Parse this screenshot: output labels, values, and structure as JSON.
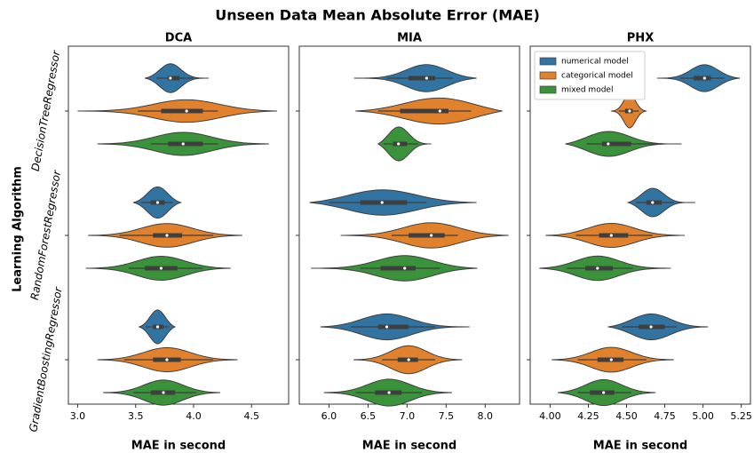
{
  "title": "Unseen Data Mean Absolute Error (MAE)",
  "chart_data": [
    {
      "type": "violin",
      "title": "DCA",
      "xlabel": "MAE in second",
      "ylabel": "Learning Algorithm",
      "categories": [
        "DecisionTreeRegressor",
        "RandomForestRegressor",
        "GradientBoostingRegressor"
      ],
      "xlim": [
        2.92,
        4.82
      ],
      "xticks": [
        {
          "value": 3,
          "label": "3.0"
        },
        {
          "value": 3.5,
          "label": "3.5"
        },
        {
          "value": 4,
          "label": "4.0"
        },
        {
          "value": 4.5,
          "label": "4.5"
        }
      ],
      "series": [
        {
          "color": "#3274a1",
          "values": [
            {
              "min": 3.58,
              "whislo": 3.68,
              "q1": 3.78,
              "median": 3.8,
              "q3": 3.88,
              "whishi": 4.0,
              "max": 4.13
            },
            {
              "min": 3.48,
              "whislo": 3.55,
              "q1": 3.63,
              "median": 3.69,
              "q3": 3.75,
              "whishi": 3.82,
              "max": 3.89
            },
            {
              "min": 3.53,
              "whislo": 3.59,
              "q1": 3.65,
              "median": 3.69,
              "q3": 3.74,
              "whishi": 3.78,
              "max": 3.84
            }
          ]
        },
        {
          "color": "#e1812c",
          "values": [
            {
              "min": 3.0,
              "whislo": 3.52,
              "q1": 3.72,
              "median": 3.94,
              "q3": 4.08,
              "whishi": 4.21,
              "max": 4.72
            },
            {
              "min": 3.09,
              "whislo": 3.36,
              "q1": 3.65,
              "median": 3.77,
              "q3": 3.9,
              "whishi": 4.17,
              "max": 4.42
            },
            {
              "min": 3.17,
              "whislo": 3.4,
              "q1": 3.65,
              "median": 3.77,
              "q3": 3.89,
              "whishi": 4.17,
              "max": 4.38
            }
          ]
        },
        {
          "color": "#3a923a",
          "values": [
            {
              "min": 3.17,
              "whislo": 3.63,
              "q1": 3.78,
              "median": 3.91,
              "q3": 4.08,
              "whishi": 4.21,
              "max": 4.65
            },
            {
              "min": 3.07,
              "whislo": 3.44,
              "q1": 3.58,
              "median": 3.72,
              "q3": 3.86,
              "whishi": 4.08,
              "max": 4.32
            },
            {
              "min": 3.22,
              "whislo": 3.48,
              "q1": 3.63,
              "median": 3.74,
              "q3": 3.84,
              "whishi": 4.02,
              "max": 4.23
            }
          ]
        }
      ]
    },
    {
      "type": "violin",
      "title": "MIA",
      "xlabel": "MAE in second",
      "xlim": [
        5.62,
        8.44
      ],
      "xticks": [
        {
          "value": 6,
          "label": "6.0"
        },
        {
          "value": 6.5,
          "label": "6.5"
        },
        {
          "value": 7,
          "label": "7.0"
        },
        {
          "value": 7.5,
          "label": "7.5"
        },
        {
          "value": 8,
          "label": "8.0"
        }
      ],
      "series": [
        {
          "color": "#3274a1",
          "values": [
            {
              "min": 6.32,
              "whislo": 6.74,
              "q1": 7.02,
              "median": 7.25,
              "q3": 7.36,
              "whishi": 7.59,
              "max": 7.89
            },
            {
              "min": 5.75,
              "whislo": 6.0,
              "q1": 6.4,
              "median": 6.68,
              "q3": 7.0,
              "whishi": 7.25,
              "max": 7.89
            },
            {
              "min": 5.89,
              "whislo": 6.28,
              "q1": 6.63,
              "median": 6.74,
              "q3": 7.02,
              "whishi": 7.36,
              "max": 7.8
            }
          ]
        },
        {
          "color": "#e1812c",
          "values": [
            {
              "min": 6.34,
              "whislo": 6.63,
              "q1": 6.91,
              "median": 7.42,
              "q3": 7.53,
              "whishi": 7.82,
              "max": 8.22
            },
            {
              "min": 6.15,
              "whislo": 6.8,
              "q1": 7.02,
              "median": 7.31,
              "q3": 7.48,
              "whishi": 7.65,
              "max": 8.3
            },
            {
              "min": 6.32,
              "whislo": 6.68,
              "q1": 6.88,
              "median": 7.02,
              "q3": 7.14,
              "whishi": 7.36,
              "max": 7.7
            }
          ]
        },
        {
          "color": "#3a923a",
          "values": [
            {
              "min": 6.63,
              "whislo": 6.7,
              "q1": 6.82,
              "median": 6.89,
              "q3": 7.0,
              "whishi": 7.14,
              "max": 7.31
            },
            {
              "min": 5.77,
              "whislo": 6.4,
              "q1": 6.66,
              "median": 6.97,
              "q3": 7.11,
              "whishi": 7.42,
              "max": 7.9
            },
            {
              "min": 5.94,
              "whislo": 6.34,
              "q1": 6.59,
              "median": 6.77,
              "q3": 6.93,
              "whishi": 7.19,
              "max": 7.57
            }
          ]
        }
      ]
    },
    {
      "type": "violin",
      "title": "PHX",
      "xlabel": "MAE in second",
      "legend": "upper left",
      "xlim": [
        3.87,
        5.31
      ],
      "xticks": [
        {
          "value": 4,
          "label": "4.00"
        },
        {
          "value": 4.25,
          "label": "4.25"
        },
        {
          "value": 4.5,
          "label": "4.50"
        },
        {
          "value": 4.75,
          "label": "4.75"
        },
        {
          "value": 5,
          "label": "5.00"
        },
        {
          "value": 5.25,
          "label": "5.25"
        }
      ],
      "series": [
        {
          "name": "numerical model",
          "color": "#3274a1",
          "values": [
            {
              "min": 4.7,
              "whislo": 4.85,
              "q1": 4.94,
              "median": 5.01,
              "q3": 5.05,
              "whishi": 5.14,
              "max": 5.24
            },
            {
              "min": 4.51,
              "whislo": 4.56,
              "q1": 4.63,
              "median": 4.67,
              "q3": 4.73,
              "whishi": 4.81,
              "max": 4.95
            },
            {
              "min": 4.38,
              "whislo": 4.47,
              "q1": 4.58,
              "median": 4.66,
              "q3": 4.75,
              "whishi": 4.83,
              "max": 5.03
            }
          ]
        },
        {
          "name": "categorical model",
          "color": "#e1812c",
          "values": [
            {
              "min": 4.4,
              "whislo": 4.45,
              "q1": 4.49,
              "median": 4.52,
              "q3": 4.54,
              "whishi": 4.58,
              "max": 4.63
            },
            {
              "min": 3.97,
              "whislo": 4.17,
              "q1": 4.32,
              "median": 4.4,
              "q3": 4.51,
              "whishi": 4.67,
              "max": 4.88
            },
            {
              "min": 4.01,
              "whislo": 4.18,
              "q1": 4.31,
              "median": 4.4,
              "q3": 4.48,
              "whishi": 4.63,
              "max": 4.81
            }
          ]
        },
        {
          "name": "mixed model",
          "color": "#3a923a",
          "values": [
            {
              "min": 4.1,
              "whislo": 4.24,
              "q1": 4.34,
              "median": 4.38,
              "q3": 4.53,
              "whishi": 4.7,
              "max": 4.86
            },
            {
              "min": 3.93,
              "whislo": 4.11,
              "q1": 4.23,
              "median": 4.31,
              "q3": 4.41,
              "whishi": 4.54,
              "max": 4.79
            },
            {
              "min": 4.05,
              "whislo": 4.18,
              "q1": 4.26,
              "median": 4.35,
              "q3": 4.42,
              "whishi": 4.53,
              "max": 4.69
            }
          ]
        }
      ]
    }
  ]
}
